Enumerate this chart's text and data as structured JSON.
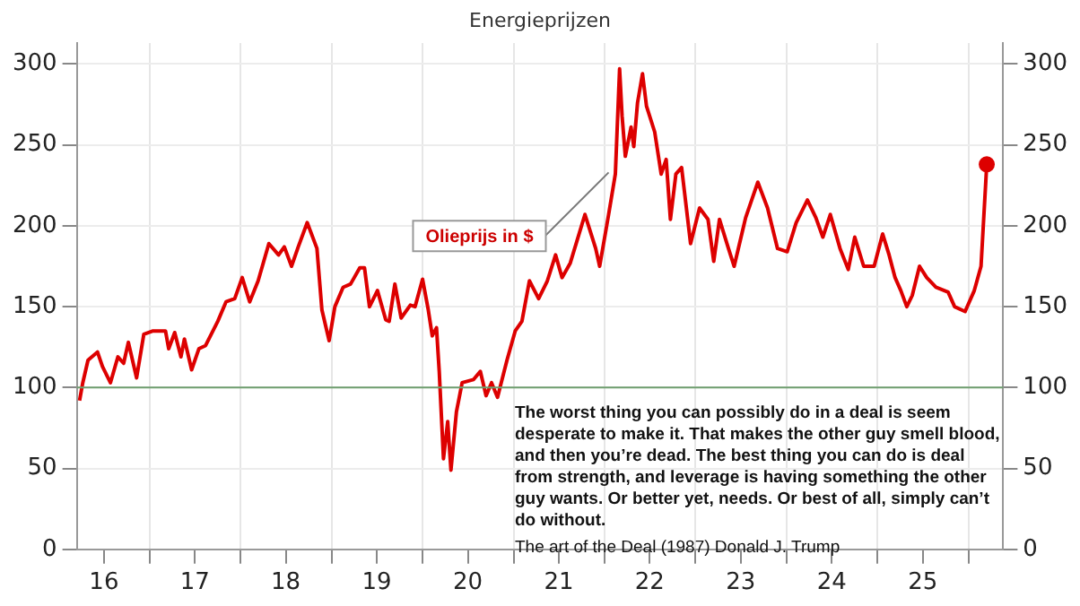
{
  "chart_data": {
    "type": "line",
    "title": "Energieprijzen",
    "x": [
      "2016-03-25",
      "2016-04-07",
      "2016-04-28",
      "2016-06-05",
      "2016-06-25",
      "2016-07-27",
      "2016-08-26",
      "2016-09-18",
      "2016-10-07",
      "2016-11-09",
      "2016-12-08",
      "2017-01-14",
      "2017-03-05",
      "2017-03-18",
      "2017-04-11",
      "2017-05-06",
      "2017-05-20",
      "2017-06-18",
      "2017-07-17",
      "2017-08-13",
      "2017-10-01",
      "2017-11-03",
      "2017-12-08",
      "2018-01-07",
      "2018-02-06",
      "2018-03-12",
      "2018-04-24",
      "2018-06-02",
      "2018-06-25",
      "2018-07-24",
      "2018-08-20",
      "2018-09-25",
      "2018-11-03",
      "2018-11-23",
      "2018-12-22",
      "2019-01-14",
      "2019-02-16",
      "2019-03-18",
      "2019-04-24",
      "2019-05-13",
      "2019-06-02",
      "2019-07-04",
      "2019-08-06",
      "2019-08-20",
      "2019-09-12",
      "2019-10-07",
      "2019-11-13",
      "2019-12-02",
      "2020-01-01",
      "2020-01-24",
      "2020-02-09",
      "2020-02-26",
      "2020-03-08",
      "2020-03-25",
      "2020-04-11",
      "2020-04-24",
      "2020-05-16",
      "2020-06-08",
      "2020-07-24",
      "2020-08-20",
      "2020-09-12",
      "2020-10-04",
      "2020-10-28",
      "2020-12-05",
      "2021-01-07",
      "2021-02-03",
      "2021-03-05",
      "2021-04-11",
      "2021-05-16",
      "2021-06-18",
      "2021-07-14",
      "2021-08-16",
      "2021-10-14",
      "2021-11-26",
      "2021-12-12",
      "2022-01-17",
      "2022-02-13",
      "2022-03-02",
      "2022-03-12",
      "2022-03-25",
      "2022-04-17",
      "2022-04-28",
      "2022-05-13",
      "2022-06-02",
      "2022-06-18",
      "2022-07-21",
      "2022-08-16",
      "2022-09-05",
      "2022-09-22",
      "2022-10-14",
      "2022-11-06",
      "2022-12-12",
      "2023-01-17",
      "2023-02-20",
      "2023-03-15",
      "2023-04-07",
      "2023-05-13",
      "2023-06-05",
      "2023-07-21",
      "2023-09-08",
      "2023-10-17",
      "2023-11-26",
      "2024-01-04",
      "2024-02-09",
      "2024-03-25",
      "2024-04-28",
      "2024-05-26",
      "2024-06-25",
      "2024-08-03",
      "2024-09-05",
      "2024-10-01",
      "2024-11-06",
      "2024-12-18",
      "2025-01-21",
      "2025-02-16",
      "2025-03-12",
      "2025-04-04",
      "2025-04-28",
      "2025-05-20",
      "2025-06-18",
      "2025-07-17",
      "2025-08-23",
      "2025-10-11",
      "2025-11-06",
      "2025-12-18",
      "2026-01-24",
      "2026-02-20",
      "2026-03-15"
    ],
    "series": [
      {
        "color": "#dd0000",
        "marker": "none",
        "values": [
          92,
          103,
          117,
          122,
          113,
          103,
          119,
          115,
          128,
          106,
          133,
          135,
          135,
          124,
          134,
          119,
          130,
          111,
          124,
          126,
          141,
          153,
          155,
          168,
          153,
          166,
          189,
          182,
          187,
          175,
          187,
          202,
          186,
          148,
          129,
          150,
          162,
          164,
          174,
          174,
          150,
          160,
          142,
          141,
          164,
          143,
          151,
          150,
          167,
          148,
          132,
          137,
          110,
          56,
          79,
          49,
          85,
          103,
          105,
          110,
          95,
          103,
          94,
          117,
          135,
          141,
          166,
          155,
          166,
          182,
          168,
          177,
          207,
          186,
          175,
          207,
          232,
          297,
          268,
          243,
          261,
          249,
          276,
          294,
          274,
          258,
          232,
          241,
          204,
          232,
          236,
          189,
          211,
          204,
          178,
          204,
          186,
          175,
          205,
          227,
          211,
          186,
          184,
          202,
          216,
          205,
          193,
          207,
          186,
          173,
          193,
          175,
          175,
          195,
          182,
          168,
          160,
          150,
          157,
          175,
          168,
          162,
          159,
          150,
          147,
          160,
          175,
          238
        ]
      },
      {
        "type": "scatter",
        "color": "#dd0000",
        "marker": "circle",
        "x": [
          "2026-03-15"
        ],
        "values": [
          238
        ]
      }
    ],
    "xlim": [
      "2016-03-14",
      "2026-05-20"
    ],
    "xticks": [
      {
        "value": "2016-07-01",
        "label": "16"
      },
      {
        "value": "2017-01-01",
        "label": null
      },
      {
        "value": "2017-07-01",
        "label": "17"
      },
      {
        "value": "2018-01-01",
        "label": null
      },
      {
        "value": "2018-07-01",
        "label": "18"
      },
      {
        "value": "2019-01-01",
        "label": null
      },
      {
        "value": "2019-07-01",
        "label": "19"
      },
      {
        "value": "2020-01-01",
        "label": null
      },
      {
        "value": "2020-07-01",
        "label": "20"
      },
      {
        "value": "2021-01-01",
        "label": null
      },
      {
        "value": "2021-07-01",
        "label": "21"
      },
      {
        "value": "2022-01-01",
        "label": null
      },
      {
        "value": "2022-07-01",
        "label": "22"
      },
      {
        "value": "2023-01-01",
        "label": null
      },
      {
        "value": "2023-07-01",
        "label": "23"
      },
      {
        "value": "2024-01-01",
        "label": null
      },
      {
        "value": "2024-07-01",
        "label": "24"
      },
      {
        "value": "2025-01-01",
        "label": null
      },
      {
        "value": "2025-07-01",
        "label": "25"
      },
      {
        "value": "2026-01-01",
        "label": null
      }
    ],
    "ylim": [
      0,
      313
    ],
    "yticks": [
      0,
      50,
      100,
      150,
      200,
      250,
      300
    ],
    "y2lim": [
      0,
      313
    ],
    "y2ticks": [
      0,
      50,
      100,
      150,
      200,
      250,
      300
    ],
    "grid": true,
    "legend": false,
    "line_style": "solid",
    "ref_lines": [
      {
        "axis": "y",
        "value": 100,
        "label": null,
        "color": "#6e9e6e"
      }
    ],
    "annotations": [
      {
        "text": "Olieprijs in $",
        "x": "2022-01-17",
        "y": 233
      },
      "The worst thing you can possibly do in a deal is seem desperate to make it. That makes the other guy smell blood, and then you’re dead. The best thing you can do is deal from strength, and leverage is having something the other guy wants. Or better yet, needs. Or best of all, simply can’t do without.",
      "The art of the Deal (1987) Donald J. Trump"
    ]
  }
}
